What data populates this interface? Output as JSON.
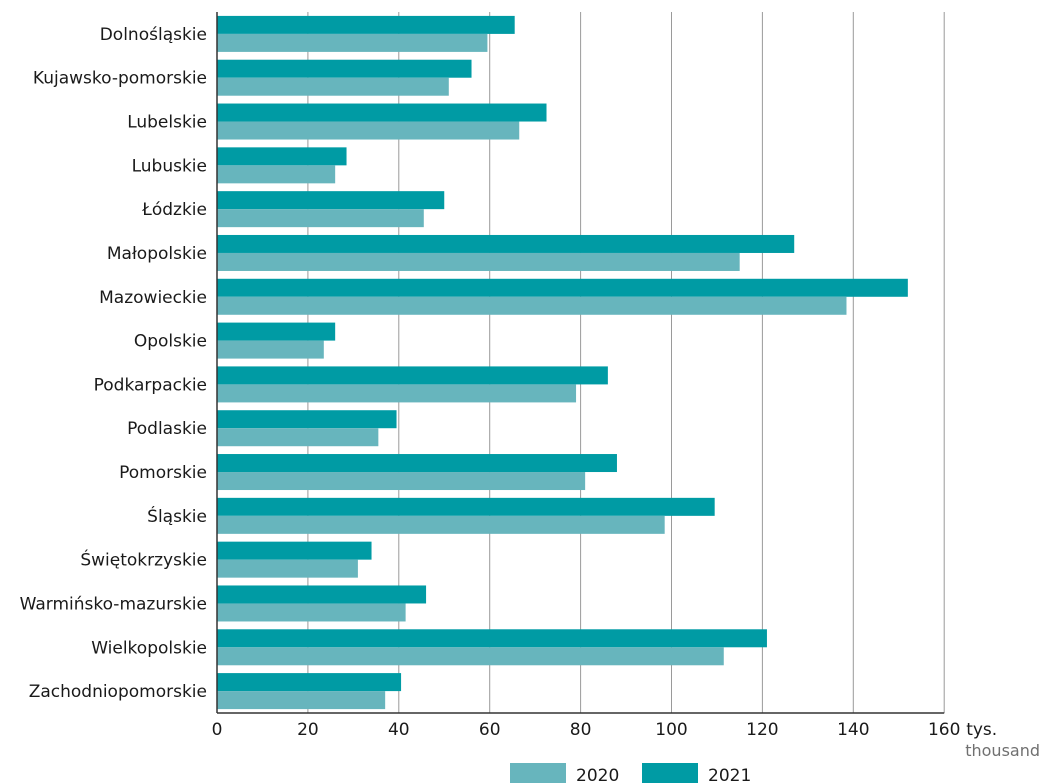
{
  "chart_data": {
    "type": "bar",
    "orientation": "horizontal",
    "categories": [
      "Dolnośląskie",
      "Kujawsko-pomorskie",
      "Lubelskie",
      "Lubuskie",
      "Łódzkie",
      "Małopolskie",
      "Mazowieckie",
      "Opolskie",
      "Podkarpackie",
      "Podlaskie",
      "Pomorskie",
      "Śląskie",
      "Świętokrzyskie",
      "Warmińsko-mazurskie",
      "Wielkopolskie",
      "Zachodniopomorskie"
    ],
    "series": [
      {
        "name": "2020",
        "color": "#67b5bd",
        "values": [
          59.5,
          51,
          66.5,
          26,
          45.5,
          115,
          138.5,
          23.5,
          79,
          35.5,
          81,
          98.5,
          31,
          41.5,
          111.5,
          37
        ]
      },
      {
        "name": "2021",
        "color": "#009ba4",
        "values": [
          65.5,
          56,
          72.5,
          28.5,
          50,
          127,
          152,
          26,
          86,
          39.5,
          88,
          109.5,
          34,
          46,
          121,
          40.5
        ]
      }
    ],
    "xlim": [
      0,
      160
    ],
    "xticks": [
      "0",
      "20",
      "40",
      "60",
      "80",
      "100",
      "120",
      "140",
      "160"
    ],
    "unit_label": "tys.",
    "unit_label_en": "thousand",
    "grid": true,
    "legend_position": "bottom"
  }
}
